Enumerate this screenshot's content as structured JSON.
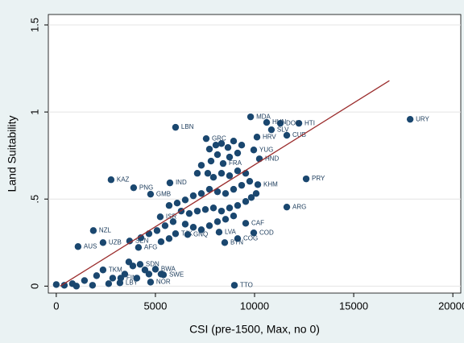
{
  "chart_data": {
    "type": "scatter",
    "x_label": "CSI (pre-1500, Max, no 0)",
    "y_label": "Land Suitability",
    "xlim": [
      -400,
      20400
    ],
    "ylim": [
      -0.04,
      1.56
    ],
    "xticks": [
      0,
      5000,
      10000,
      15000,
      20000
    ],
    "yticks": [
      0,
      {
        "value": 0.5,
        "label": ".5"
      },
      1,
      1.5
    ],
    "grid": true,
    "color": "#1a476f",
    "x": [
      17846,
      12236,
      11300,
      10610,
      9800,
      10850,
      11626,
      6016,
      7561,
      10122,
      9959,
      10244,
      12602,
      2764,
      3902,
      5732,
      4756,
      11626,
      1870,
      1098,
      2358,
      3699,
      4146,
      5244,
      6016,
      9959,
      9146,
      8496,
      8211,
      9553,
      8415,
      10163,
      6626,
      8984,
      4756,
      5407,
      3211,
      3252,
      2358,
      4228,
      5000,
      7724,
      8049,
      8333,
      8659,
      8943,
      9146,
      9350,
      8740,
      8130,
      7805,
      7317,
      7114,
      7642,
      7927,
      8333,
      8740,
      9146,
      9553,
      9756,
      9350,
      8943,
      8537,
      8130,
      7724,
      7317,
      6911,
      6504,
      6098,
      5691,
      6301,
      6707,
      7114,
      7520,
      7927,
      8333,
      8740,
      9146,
      9553,
      9837,
      10081,
      8943,
      8537,
      8130,
      7724,
      7317,
      6911,
      6504,
      5894,
      5488,
      5081,
      4675,
      4268,
      5285,
      5691,
      3659,
      3862,
      4472,
      3455,
      2846,
      2033,
      1423,
      813,
      407,
      0,
      1016,
      1829,
      2642,
      4065,
      4675,
      5285
    ],
    "values": [
      0.958,
      0.935,
      0.935,
      0.94,
      0.972,
      0.898,
      0.866,
      0.912,
      0.847,
      0.856,
      0.782,
      0.731,
      0.616,
      0.611,
      0.565,
      0.593,
      0.528,
      0.454,
      0.319,
      0.227,
      0.25,
      0.259,
      0.222,
      0.398,
      0.301,
      0.306,
      0.273,
      0.25,
      0.31,
      0.361,
      0.704,
      0.583,
      0.296,
      0.005,
      0.023,
      0.065,
      0.019,
      0.046,
      0.093,
      0.125,
      0.097,
      0.787,
      0.81,
      0.819,
      0.796,
      0.833,
      0.764,
      0.81,
      0.741,
      0.755,
      0.718,
      0.694,
      0.648,
      0.648,
      0.625,
      0.648,
      0.634,
      0.662,
      0.648,
      0.602,
      0.579,
      0.556,
      0.532,
      0.542,
      0.556,
      0.532,
      0.519,
      0.495,
      0.477,
      0.463,
      0.431,
      0.417,
      0.431,
      0.44,
      0.449,
      0.431,
      0.449,
      0.463,
      0.486,
      0.509,
      0.532,
      0.403,
      0.384,
      0.37,
      0.347,
      0.324,
      0.338,
      0.356,
      0.37,
      0.347,
      0.319,
      0.301,
      0.278,
      0.255,
      0.273,
      0.139,
      0.116,
      0.093,
      0.069,
      0.046,
      0.06,
      0.032,
      0.014,
      0.005,
      0.009,
      0,
      0.005,
      0.014,
      0.046,
      0.069,
      0.069
    ],
    "point_labels": [
      "URY",
      "HTI",
      "DOM",
      "HUN",
      "MDA",
      "SLV",
      "CUB",
      "LBN",
      "GRC",
      "HRV",
      "YUG",
      "HND",
      "PRY",
      "KAZ",
      "PNG",
      "IND",
      "GMB",
      "ARG",
      "NZL",
      "AUS",
      "UZB",
      "SEN",
      "AFG",
      "ISR",
      "TJK",
      "COD",
      "COG",
      "BTN",
      "LVA",
      "CAF",
      "FRA",
      "KHM",
      "GNQ",
      "TTO",
      "NOR",
      "SWE",
      "LBY",
      "FIN",
      "TKM",
      "SDN",
      "BWA",
      null,
      null,
      null,
      null,
      null,
      null,
      null,
      null,
      null,
      null,
      null,
      null,
      null,
      null,
      null,
      null,
      null,
      null,
      null,
      null,
      null,
      null,
      null,
      null,
      null,
      null,
      null,
      null,
      null,
      null,
      null,
      null,
      null,
      null,
      null,
      null,
      null,
      null,
      null,
      null,
      null,
      null,
      null,
      null,
      null,
      null,
      null,
      null,
      null,
      null,
      null,
      null,
      null,
      null,
      null,
      null,
      null,
      null,
      null,
      null,
      null,
      null,
      null,
      null,
      null,
      null,
      null,
      null,
      null,
      null
    ],
    "fit": {
      "x": [
        200,
        16800
      ],
      "values": [
        0,
        1.18
      ],
      "color": "#9b2c2c"
    }
  }
}
